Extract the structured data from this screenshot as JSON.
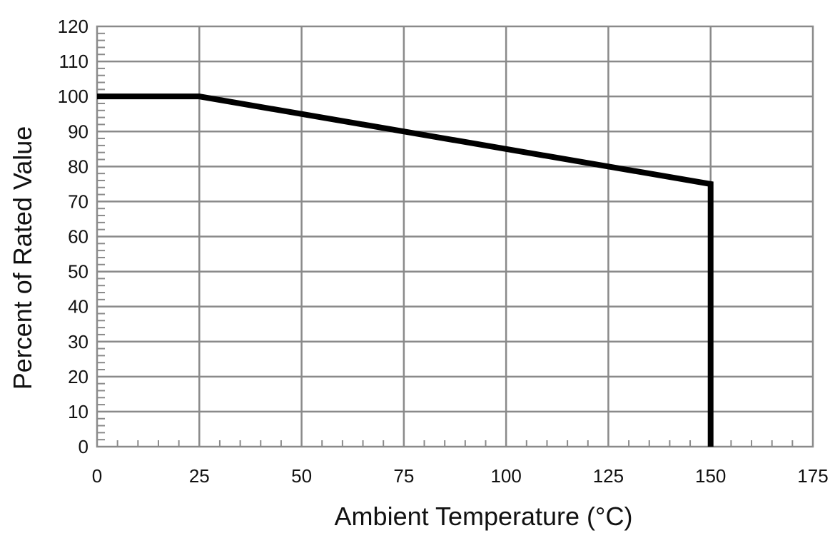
{
  "chart_data": {
    "type": "line",
    "title": "",
    "xlabel": "Ambient Temperature (°C)",
    "ylabel": "Percent of Rated Value",
    "xlim": [
      0,
      175
    ],
    "ylim": [
      0,
      120
    ],
    "x_ticks": [
      0,
      25,
      50,
      75,
      100,
      125,
      150,
      175
    ],
    "y_ticks": [
      0,
      10,
      20,
      30,
      40,
      50,
      60,
      70,
      80,
      90,
      100,
      110,
      120
    ],
    "x_minor_step": 5,
    "y_minor_step": 2,
    "grid": true,
    "legend": "none",
    "series": [
      {
        "x": [
          0,
          25,
          150,
          150
        ],
        "y": [
          100,
          100,
          75,
          0
        ]
      }
    ]
  },
  "colors": {
    "grid": "#8a8a8a",
    "curve": "#000000",
    "text": "#111111"
  }
}
